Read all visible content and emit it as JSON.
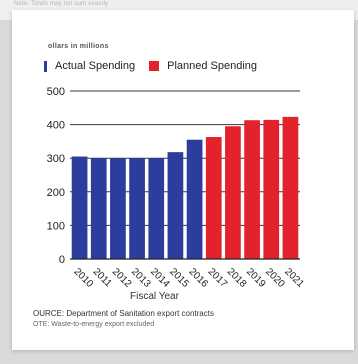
{
  "page": {
    "top_note": "Note: Totals may not sum exactly",
    "unit_label": "ollars in millions"
  },
  "chart_data": {
    "type": "bar",
    "title": "",
    "xlabel": "Fiscal Year",
    "ylabel": "",
    "ylim": [
      0,
      500
    ],
    "yticks": [
      0,
      100,
      200,
      300,
      400,
      500
    ],
    "grid": "horizontal",
    "legend_position": "top-left",
    "categories": [
      "2010",
      "2011",
      "2012",
      "2013",
      "2014",
      "2015",
      "2016",
      "2017",
      "2018",
      "2019",
      "2020",
      "2021"
    ],
    "series": [
      {
        "name": "Actual Spending",
        "color": "#2b3e9e",
        "values": [
          305,
          300,
          300,
          300,
          300,
          318,
          355,
          null,
          null,
          null,
          null,
          null
        ]
      },
      {
        "name": "Planned Spending",
        "color": "#e2232c",
        "values": [
          null,
          null,
          null,
          null,
          null,
          null,
          null,
          363,
          395,
          413,
          414,
          423
        ]
      }
    ],
    "source": "OURCE: Department of Sanitation export contracts",
    "note": "OTE: Waste-to-energy export excluded"
  }
}
